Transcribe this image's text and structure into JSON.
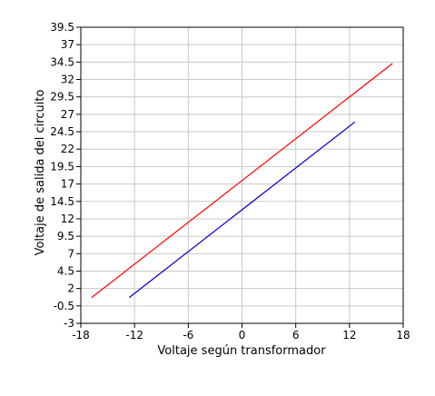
{
  "chart_data": {
    "type": "line",
    "title": "",
    "xlabel": "Voltaje según transformador",
    "ylabel": "Voltaje de salida del circuito",
    "xlim": [
      -18,
      18
    ],
    "ylim": [
      -3,
      39.5
    ],
    "x_ticks": [
      "-18",
      "-12",
      "-6",
      "0",
      "6",
      "12",
      "18"
    ],
    "y_ticks": [
      "-3",
      "-0.5",
      "2",
      "4.5",
      "7",
      "9.5",
      "12",
      "14.5",
      "17",
      "19.5",
      "22",
      "24.5",
      "27",
      "29.5",
      "32",
      "34.5",
      "37",
      "39.5"
    ],
    "x_tick_values": [
      -18,
      -12,
      -6,
      0,
      6,
      12,
      18
    ],
    "y_tick_values": [
      -3,
      -0.5,
      2,
      4.5,
      7,
      9.5,
      12,
      14.5,
      17,
      19.5,
      22,
      24.5,
      27,
      29.5,
      32,
      34.5,
      37,
      39.5
    ],
    "grid": true,
    "legend": "none",
    "series": [
      {
        "color": "#ff0000",
        "x": [
          -16.8,
          16.8
        ],
        "y": [
          0.7,
          34.3
        ]
      },
      {
        "color": "#0000cc",
        "x": [
          -12.6,
          12.6
        ],
        "y": [
          0.7,
          25.9
        ]
      }
    ]
  }
}
